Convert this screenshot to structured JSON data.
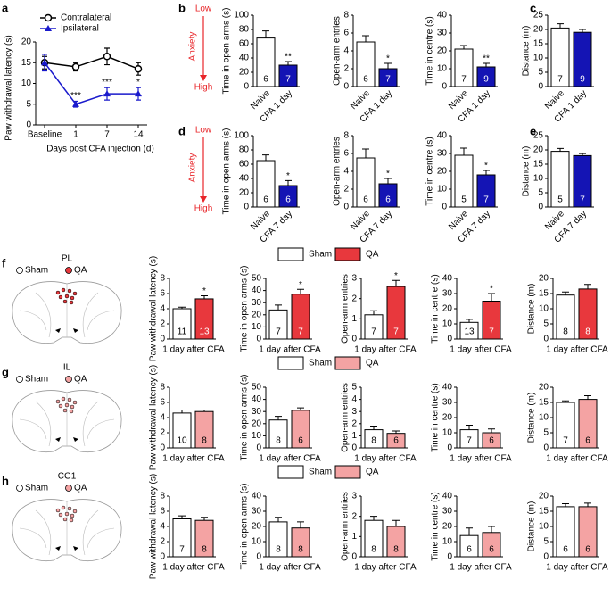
{
  "chart_data": [
    {
      "type": "line",
      "panel": "a",
      "ylabel": "Paw withdrawal latency (s)",
      "xlabel": "Days post CFA injection (d)",
      "categories": [
        "Baseline",
        "1",
        "7",
        "14"
      ],
      "ylim": [
        0,
        20
      ],
      "yticks": [
        0,
        5,
        10,
        15,
        20
      ],
      "legend": "top-left",
      "series": [
        {
          "name": "Contralateral",
          "color": "#000000",
          "marker": "circle",
          "values": [
            15,
            14,
            16.5,
            13.5
          ],
          "errors": [
            1.5,
            1,
            2,
            1.5
          ]
        },
        {
          "name": "Ipsilateral",
          "color": "#1a1acc",
          "marker": "triangle",
          "values": [
            15,
            5,
            7.5,
            7.5
          ],
          "errors": [
            2,
            0.7,
            1.5,
            1.5
          ],
          "significance": [
            null,
            "***",
            "***",
            "*"
          ]
        }
      ]
    },
    {
      "type": "bar",
      "panel": "b",
      "anxiety": {
        "low": "Low",
        "label": "Anxiety",
        "high": "High"
      },
      "categories": [
        "Naive",
        "CFA 1 day"
      ],
      "colors": [
        "#ffffff",
        "#1414b4"
      ],
      "subplots": [
        {
          "ylabel": "Time in open arms (s)",
          "ylim": [
            0,
            100
          ],
          "yticks": [
            0,
            20,
            40,
            60,
            80,
            100
          ],
          "values": [
            68,
            30
          ],
          "errors": [
            10,
            5
          ],
          "n": [
            6,
            7
          ],
          "significance": [
            null,
            "**"
          ]
        },
        {
          "ylabel": "Open-arm entries",
          "ylim": [
            0,
            8
          ],
          "yticks": [
            0,
            2,
            4,
            6,
            8
          ],
          "values": [
            5,
            2
          ],
          "errors": [
            0.7,
            0.6
          ],
          "n": [
            6,
            7
          ],
          "significance": [
            null,
            "*"
          ]
        },
        {
          "ylabel": "Time in centre (s)",
          "ylim": [
            0,
            40
          ],
          "yticks": [
            0,
            10,
            20,
            30,
            40
          ],
          "values": [
            21,
            11
          ],
          "errors": [
            2,
            2
          ],
          "n": [
            7,
            9
          ],
          "significance": [
            null,
            "**"
          ]
        }
      ]
    },
    {
      "type": "bar",
      "panel": "c",
      "categories": [
        "Naive",
        "CFA 1 day"
      ],
      "colors": [
        "#ffffff",
        "#1414b4"
      ],
      "subplots": [
        {
          "ylabel": "Distance (m)",
          "ylim": [
            0,
            25
          ],
          "yticks": [
            0,
            5,
            10,
            15,
            20,
            25
          ],
          "values": [
            20.5,
            19
          ],
          "errors": [
            1.5,
            1
          ],
          "n": [
            7,
            9
          ]
        }
      ]
    },
    {
      "type": "bar",
      "panel": "d",
      "anxiety": {
        "low": "Low",
        "label": "Anxiety",
        "high": "High"
      },
      "categories": [
        "Naive",
        "CFA 7 day"
      ],
      "colors": [
        "#ffffff",
        "#1414b4"
      ],
      "subplots": [
        {
          "ylabel": "Time in open arms (s)",
          "ylim": [
            0,
            100
          ],
          "yticks": [
            0,
            20,
            40,
            60,
            80,
            100
          ],
          "values": [
            65,
            30
          ],
          "errors": [
            8,
            7
          ],
          "n": [
            6,
            6
          ],
          "significance": [
            null,
            "*"
          ]
        },
        {
          "ylabel": "Open-arm entries",
          "ylim": [
            0,
            8
          ],
          "yticks": [
            0,
            2,
            4,
            6,
            8
          ],
          "values": [
            5.5,
            2.6
          ],
          "errors": [
            1,
            0.6
          ],
          "n": [
            6,
            6
          ],
          "significance": [
            null,
            "*"
          ]
        },
        {
          "ylabel": "Time in centre (s)",
          "ylim": [
            0,
            40
          ],
          "yticks": [
            0,
            10,
            20,
            30,
            40
          ],
          "values": [
            29,
            18
          ],
          "errors": [
            4,
            2.5
          ],
          "n": [
            5,
            7
          ],
          "significance": [
            null,
            "*"
          ]
        }
      ]
    },
    {
      "type": "bar",
      "panel": "e",
      "categories": [
        "Naive",
        "CFA 7 day"
      ],
      "colors": [
        "#ffffff",
        "#1414b4"
      ],
      "subplots": [
        {
          "ylabel": "Distance (m)",
          "ylim": [
            0,
            25
          ],
          "yticks": [
            0,
            5,
            10,
            15,
            20,
            25
          ],
          "values": [
            19.5,
            18
          ],
          "errors": [
            1,
            0.7
          ],
          "n": [
            5,
            7
          ]
        }
      ]
    },
    {
      "type": "bar",
      "panel": "f",
      "region": "PL",
      "xlabel": "1 day after CFA",
      "series": [
        {
          "name": "Sham",
          "color": "#ffffff"
        },
        {
          "name": "QA",
          "color": "#e8383d"
        }
      ],
      "subplots": [
        {
          "ylabel": "Paw withdrawal latency (s)",
          "ylim": [
            0,
            8
          ],
          "yticks": [
            0,
            2,
            4,
            6,
            8
          ],
          "values": [
            4,
            5.3
          ],
          "errors": [
            0.2,
            0.4
          ],
          "n": [
            11,
            13
          ],
          "significance": [
            null,
            "*"
          ]
        },
        {
          "ylabel": "Time in open arms (s)",
          "ylim": [
            0,
            50
          ],
          "yticks": [
            0,
            10,
            20,
            30,
            40,
            50
          ],
          "values": [
            24,
            37
          ],
          "errors": [
            4,
            4
          ],
          "n": [
            7,
            7
          ],
          "significance": [
            null,
            "*"
          ]
        },
        {
          "ylabel": "Open-arm entries",
          "ylim": [
            0,
            3
          ],
          "yticks": [
            0,
            1,
            2,
            3
          ],
          "values": [
            1.2,
            2.6
          ],
          "errors": [
            0.2,
            0.3
          ],
          "n": [
            7,
            7
          ],
          "significance": [
            null,
            "*"
          ]
        },
        {
          "ylabel": "Time in centre (s)",
          "ylim": [
            0,
            40
          ],
          "yticks": [
            0,
            10,
            20,
            30,
            40
          ],
          "values": [
            11,
            25
          ],
          "errors": [
            2,
            5
          ],
          "n": [
            13,
            7
          ],
          "significance": [
            null,
            "*"
          ]
        },
        {
          "ylabel": "Distance (m)",
          "ylim": [
            0,
            20
          ],
          "yticks": [
            0,
            5,
            10,
            15,
            20
          ],
          "values": [
            14.5,
            16.5
          ],
          "errors": [
            1,
            1.5
          ],
          "n": [
            8,
            8
          ]
        }
      ]
    },
    {
      "type": "bar",
      "panel": "g",
      "region": "IL",
      "xlabel": "1 day after CFA",
      "series": [
        {
          "name": "Sham",
          "color": "#ffffff"
        },
        {
          "name": "QA",
          "color": "#f4a3a3"
        }
      ],
      "subplots": [
        {
          "ylabel": "Paw withdrawal latency (s)",
          "ylim": [
            0,
            8
          ],
          "yticks": [
            0,
            2,
            4,
            6,
            8
          ],
          "values": [
            4.6,
            4.8
          ],
          "errors": [
            0.4,
            0.2
          ],
          "n": [
            10,
            8
          ]
        },
        {
          "ylabel": "Time in open arms (s)",
          "ylim": [
            0,
            50
          ],
          "yticks": [
            0,
            10,
            20,
            30,
            40,
            50
          ],
          "values": [
            23,
            31
          ],
          "errors": [
            3,
            2
          ],
          "n": [
            8,
            6
          ]
        },
        {
          "ylabel": "Open-arm entries",
          "ylim": [
            0,
            5
          ],
          "yticks": [
            0,
            1,
            2,
            3,
            4,
            5
          ],
          "values": [
            1.5,
            1.2
          ],
          "errors": [
            0.3,
            0.2
          ],
          "n": [
            8,
            6
          ]
        },
        {
          "ylabel": "Time in centre (s)",
          "ylim": [
            0,
            40
          ],
          "yticks": [
            0,
            10,
            20,
            30,
            40
          ],
          "values": [
            12,
            10
          ],
          "errors": [
            3,
            2.5
          ],
          "n": [
            7,
            6
          ]
        },
        {
          "ylabel": "Distance (m)",
          "ylim": [
            0,
            20
          ],
          "yticks": [
            0,
            5,
            10,
            15,
            20
          ],
          "values": [
            15,
            16
          ],
          "errors": [
            0.5,
            1.2
          ],
          "n": [
            7,
            6
          ]
        }
      ]
    },
    {
      "type": "bar",
      "panel": "h",
      "region": "CG1",
      "xlabel": "1 day after CFA",
      "series": [
        {
          "name": "Sham",
          "color": "#ffffff"
        },
        {
          "name": "QA",
          "color": "#f4a3a3"
        }
      ],
      "subplots": [
        {
          "ylabel": "Paw withdrawal latency (s)",
          "ylim": [
            0,
            8
          ],
          "yticks": [
            0,
            2,
            4,
            6,
            8
          ],
          "values": [
            5,
            4.8
          ],
          "errors": [
            0.4,
            0.4
          ],
          "n": [
            7,
            8
          ]
        },
        {
          "ylabel": "Time in open arms (s)",
          "ylim": [
            0,
            40
          ],
          "yticks": [
            0,
            10,
            20,
            30,
            40
          ],
          "values": [
            23,
            19
          ],
          "errors": [
            3,
            4
          ],
          "n": [
            8,
            8
          ]
        },
        {
          "ylabel": "Open-arm entries",
          "ylim": [
            0,
            3
          ],
          "yticks": [
            0,
            1,
            2,
            3
          ],
          "values": [
            1.8,
            1.5
          ],
          "errors": [
            0.2,
            0.3
          ],
          "n": [
            8,
            8
          ]
        },
        {
          "ylabel": "Time in centre (s)",
          "ylim": [
            0,
            40
          ],
          "yticks": [
            0,
            10,
            20,
            30,
            40
          ],
          "values": [
            14,
            16
          ],
          "errors": [
            5,
            4
          ],
          "n": [
            6,
            6
          ]
        },
        {
          "ylabel": "Distance (m)",
          "ylim": [
            0,
            20
          ],
          "yticks": [
            0,
            5,
            10,
            15,
            20
          ],
          "values": [
            16.5,
            16.5
          ],
          "errors": [
            1,
            1.2
          ],
          "n": [
            6,
            6
          ]
        }
      ]
    }
  ]
}
